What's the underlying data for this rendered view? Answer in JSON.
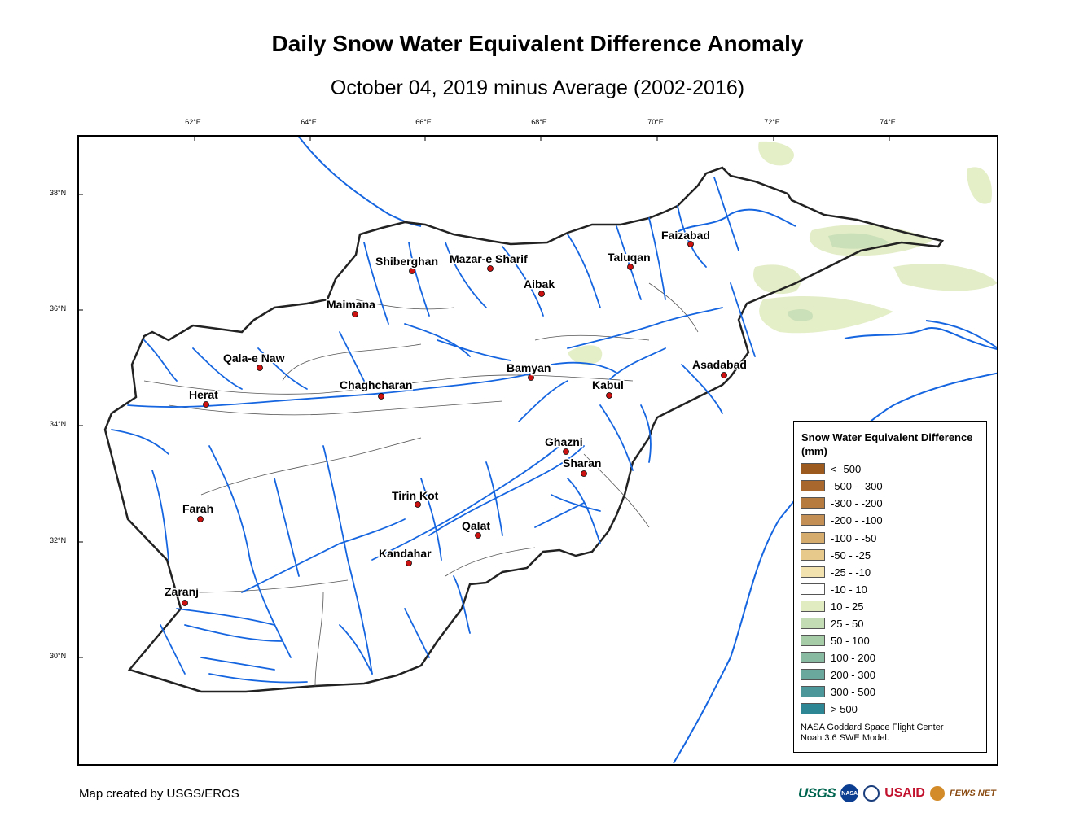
{
  "title": "Daily Snow Water Equivalent Difference Anomaly",
  "subtitle": "October 04, 2019 minus Average (2002-2016)",
  "map": {
    "lon_ticks": [
      "62°E",
      "64°E",
      "66°E",
      "68°E",
      "70°E",
      "72°E",
      "74°E"
    ],
    "lat_ticks": [
      "38°N",
      "36°N",
      "34°N",
      "32°N",
      "30°N"
    ],
    "river_color": "#1565e0",
    "boundary_color": "#222222",
    "cities": [
      {
        "name": "Faizabad"
      },
      {
        "name": "Shiberghan"
      },
      {
        "name": "Mazar-e Sharif"
      },
      {
        "name": "Taluqan"
      },
      {
        "name": "Aibak"
      },
      {
        "name": "Maimana"
      },
      {
        "name": "Qala-e Naw"
      },
      {
        "name": "Bamyan"
      },
      {
        "name": "Asadabad"
      },
      {
        "name": "Herat"
      },
      {
        "name": "Chaghcharan"
      },
      {
        "name": "Kabul"
      },
      {
        "name": "Ghazni"
      },
      {
        "name": "Sharan"
      },
      {
        "name": "Tirin Kot"
      },
      {
        "name": "Farah"
      },
      {
        "name": "Qalat"
      },
      {
        "name": "Kandahar"
      },
      {
        "name": "Zaranj"
      }
    ]
  },
  "legend": {
    "title": "Snow Water Equivalent Difference (mm)",
    "classes": [
      {
        "label": "< -500",
        "color": "#9c5a1e"
      },
      {
        "label": "-500 - -300",
        "color": "#a8672c"
      },
      {
        "label": "-300 - -200",
        "color": "#b67b3e"
      },
      {
        "label": "-200 - -100",
        "color": "#c38f55"
      },
      {
        "label": "-100 - -50",
        "color": "#d6ab6e"
      },
      {
        "label": "-50 - -25",
        "color": "#e7c98b"
      },
      {
        "label": "-25 - -10",
        "color": "#f2e2b0"
      },
      {
        "label": "-10 - 10",
        "color": "#ffffff"
      },
      {
        "label": "10 - 25",
        "color": "#e1ecc1"
      },
      {
        "label": "25 - 50",
        "color": "#c3dcb4"
      },
      {
        "label": "50 - 100",
        "color": "#a5cca7"
      },
      {
        "label": "100 - 200",
        "color": "#87baa0"
      },
      {
        "label": "200 - 300",
        "color": "#6aa89d"
      },
      {
        "label": "300 - 500",
        "color": "#4c9799"
      },
      {
        "label": "> 500",
        "color": "#2d8694"
      }
    ],
    "note_line1": "NASA Goddard Space Flight Center",
    "note_line2": "Noah 3.6 SWE Model."
  },
  "credit": "Map created by USGS/EROS",
  "logos": {
    "usgs": "USGS",
    "nasa": "NASA",
    "usaid": "USAID",
    "fews": "FEWS NET"
  }
}
